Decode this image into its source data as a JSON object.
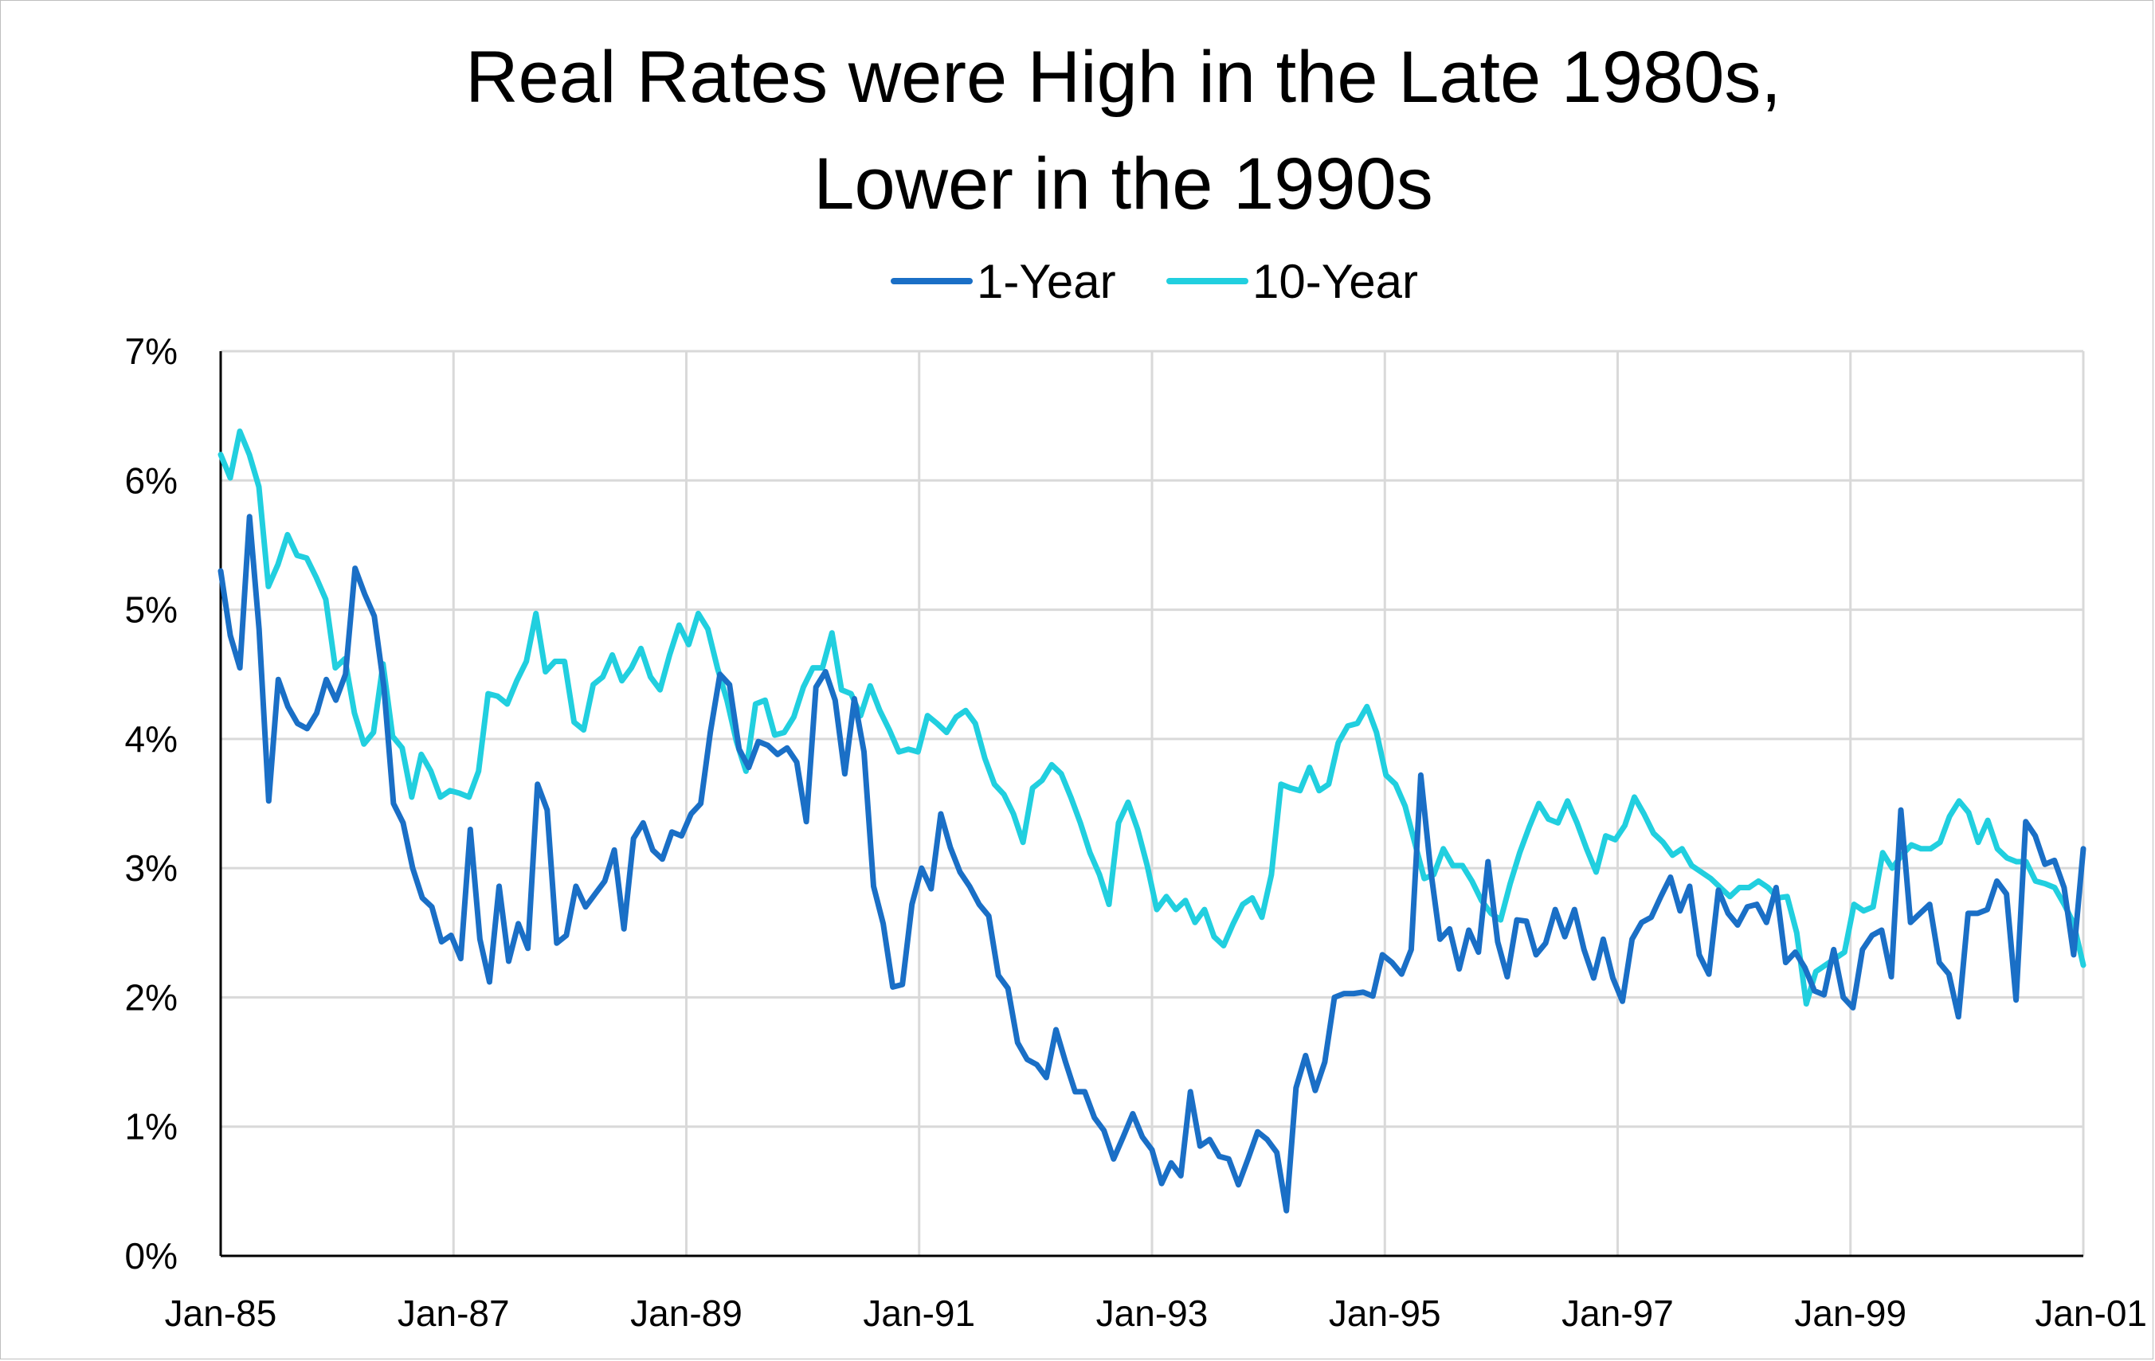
{
  "chart_data": {
    "type": "line",
    "title": [
      "Real Rates were High in the Late 1980s,",
      "Lower in the 1990s"
    ],
    "xlabel": "",
    "ylabel": "",
    "ylim": [
      0,
      7
    ],
    "y_ticks": [
      0,
      1,
      2,
      3,
      4,
      5,
      6,
      7
    ],
    "y_tick_labels": [
      "0%",
      "1%",
      "2%",
      "3%",
      "4%",
      "5%",
      "6%",
      "7%"
    ],
    "x_start": "Jan-85",
    "x_range_months": [
      0,
      192
    ],
    "x_ticks": [
      0,
      24,
      48,
      72,
      96,
      120,
      144,
      168,
      192
    ],
    "x_tick_labels": [
      "Jan-85",
      "Jan-87",
      "Jan-89",
      "Jan-91",
      "Jan-93",
      "Jan-95",
      "Jan-97",
      "Jan-99",
      "Jan-01"
    ],
    "grid": true,
    "legend_position": "top-center",
    "series": [
      {
        "name": "1-Year",
        "color": "#1a6fc6",
        "values": [
          5.3,
          4.8,
          4.55,
          5.72,
          4.85,
          3.52,
          4.46,
          4.25,
          4.12,
          4.08,
          4.2,
          4.46,
          4.3,
          4.5,
          5.32,
          5.12,
          4.95,
          4.4,
          3.5,
          3.35,
          3.0,
          2.77,
          2.7,
          2.43,
          2.48,
          2.3,
          3.3,
          2.45,
          2.12,
          2.86,
          2.28,
          2.57,
          2.38,
          3.65,
          3.45,
          2.42,
          2.48,
          2.86,
          2.7,
          2.8,
          2.9,
          3.14,
          2.53,
          3.23,
          3.35,
          3.14,
          3.07,
          3.28,
          3.25,
          3.42,
          3.5,
          4.05,
          4.5,
          4.42,
          3.92,
          3.78,
          3.98,
          3.95,
          3.88,
          3.93,
          3.82,
          3.36,
          4.4,
          4.52,
          4.3,
          3.73,
          4.31,
          3.9,
          2.86,
          2.57,
          2.08,
          2.1,
          2.72,
          3.0,
          2.84,
          3.42,
          3.16,
          2.97,
          2.86,
          2.72,
          2.63,
          2.17,
          2.07,
          1.65,
          1.52,
          1.48,
          1.38,
          1.75,
          1.5,
          1.27,
          1.27,
          1.07,
          0.97,
          0.75,
          0.92,
          1.1,
          0.92,
          0.82,
          0.56,
          0.72,
          0.62,
          1.27,
          0.85,
          0.9,
          0.77,
          0.75,
          0.55,
          0.75,
          0.96,
          0.9,
          0.8,
          0.35,
          1.3,
          1.55,
          1.28,
          1.5,
          2.0,
          2.03,
          2.03,
          2.04,
          2.01,
          2.33,
          2.27,
          2.18,
          2.37,
          3.72,
          3.0,
          2.45,
          2.53,
          2.22,
          2.52,
          2.35,
          3.05,
          2.43,
          2.16,
          2.6,
          2.59,
          2.33,
          2.42,
          2.68,
          2.47,
          2.68,
          2.37,
          2.15,
          2.45,
          2.15,
          1.97,
          2.45,
          2.58,
          2.62,
          2.78,
          2.93,
          2.67,
          2.86,
          2.33,
          2.18,
          2.83,
          2.65,
          2.56,
          2.7,
          2.72,
          2.58,
          2.85,
          2.27,
          2.35,
          2.23,
          2.05,
          2.02,
          2.37,
          2.0,
          1.92,
          2.37,
          2.48,
          2.52,
          2.16,
          3.45,
          2.58,
          2.65,
          2.72,
          2.27,
          2.18,
          1.85,
          2.65,
          2.65,
          2.68,
          2.9,
          2.8,
          1.98,
          3.36,
          3.25,
          3.03,
          3.06,
          2.85,
          2.33,
          3.15
        ]
      },
      {
        "name": "10-Year",
        "color": "#21cfdf",
        "values": [
          6.2,
          6.02,
          6.38,
          6.2,
          5.95,
          5.18,
          5.35,
          5.58,
          5.42,
          5.4,
          5.25,
          5.08,
          4.55,
          4.62,
          4.2,
          3.96,
          4.05,
          4.58,
          4.02,
          3.93,
          3.55,
          3.88,
          3.75,
          3.55,
          3.6,
          3.58,
          3.55,
          3.75,
          4.35,
          4.33,
          4.27,
          4.45,
          4.6,
          4.97,
          4.52,
          4.6,
          4.6,
          4.13,
          4.07,
          4.42,
          4.48,
          4.65,
          4.45,
          4.55,
          4.7,
          4.48,
          4.38,
          4.65,
          4.88,
          4.73,
          4.97,
          4.85,
          4.55,
          4.3,
          3.98,
          3.75,
          4.27,
          4.3,
          4.03,
          4.05,
          4.17,
          4.4,
          4.55,
          4.55,
          4.82,
          4.38,
          4.35,
          4.18,
          4.41,
          4.22,
          4.07,
          3.9,
          3.92,
          3.9,
          4.18,
          4.12,
          4.05,
          4.17,
          4.22,
          4.12,
          3.85,
          3.65,
          3.57,
          3.42,
          3.2,
          3.62,
          3.68,
          3.8,
          3.73,
          3.55,
          3.35,
          3.12,
          2.95,
          2.72,
          3.35,
          3.51,
          3.3,
          3.02,
          2.68,
          2.78,
          2.68,
          2.75,
          2.58,
          2.68,
          2.47,
          2.4,
          2.57,
          2.72,
          2.77,
          2.62,
          2.95,
          3.65,
          3.62,
          3.6,
          3.78,
          3.6,
          3.65,
          3.97,
          4.1,
          4.12,
          4.25,
          4.05,
          3.72,
          3.65,
          3.48,
          3.2,
          2.92,
          2.95,
          3.15,
          3.02,
          3.02,
          2.9,
          2.75,
          2.65,
          2.6,
          2.88,
          3.12,
          3.32,
          3.5,
          3.38,
          3.35,
          3.52,
          3.35,
          3.15,
          2.97,
          3.25,
          3.22,
          3.33,
          3.55,
          3.42,
          3.27,
          3.2,
          3.1,
          3.15,
          3.02,
          2.97,
          2.92,
          2.85,
          2.78,
          2.85,
          2.85,
          2.9,
          2.85,
          2.77,
          2.78,
          2.5,
          1.95,
          2.2,
          2.25,
          2.3,
          2.35,
          2.72,
          2.67,
          2.7,
          3.12,
          3.0,
          3.1,
          3.18,
          3.15,
          3.15,
          3.2,
          3.4,
          3.52,
          3.43,
          3.2,
          3.37,
          3.15,
          3.08,
          3.05,
          3.05,
          2.9,
          2.88,
          2.85,
          2.72,
          2.57,
          2.25
        ]
      }
    ]
  }
}
